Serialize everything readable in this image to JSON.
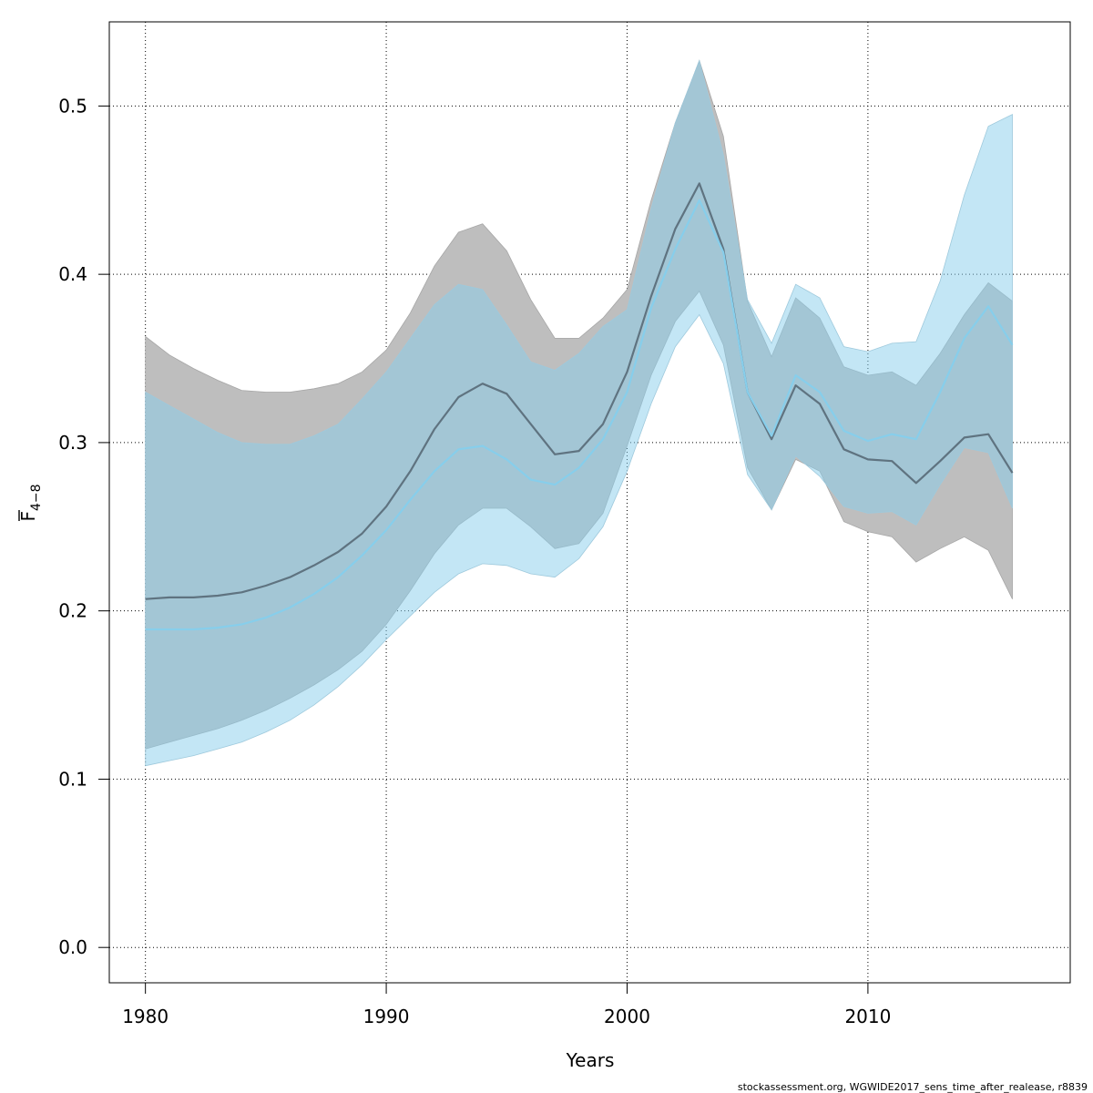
{
  "chart_data": {
    "type": "area",
    "xlabel": "Years",
    "ylabel": {
      "base": "F",
      "subscript": "4−8"
    },
    "credit": "stockassessment.org, WGWIDE2017_sens_time_after_realease, r8839",
    "xlim": [
      1978.5,
      2018.4
    ],
    "ylim": [
      -0.021,
      0.55
    ],
    "x_ticks": [
      1980,
      1990,
      2000,
      2010
    ],
    "y_ticks": [
      0.0,
      0.1,
      0.2,
      0.3,
      0.4,
      0.5
    ],
    "y_tick_labels": [
      "0.0",
      "0.1",
      "0.2",
      "0.3",
      "0.4",
      "0.5"
    ],
    "grid": true,
    "colors": {
      "gray_band": "#bebebe",
      "blue_band": "#87ceeb",
      "gray_line": "#5f7380",
      "blue_line": "#87ceeb"
    },
    "x": [
      1980,
      1981,
      1982,
      1983,
      1984,
      1985,
      1986,
      1987,
      1988,
      1989,
      1990,
      1991,
      1992,
      1993,
      1994,
      1995,
      1996,
      1997,
      1998,
      1999,
      2000,
      2001,
      2002,
      2003,
      2004,
      2005,
      2006,
      2007,
      2008,
      2009,
      2010,
      2011,
      2012,
      2013,
      2014,
      2015,
      2016
    ],
    "series": [
      {
        "color": "#5f7380",
        "band_color": "#bebebe",
        "values": [
          0.207,
          0.208,
          0.208,
          0.209,
          0.211,
          0.215,
          0.22,
          0.227,
          0.235,
          0.246,
          0.262,
          0.283,
          0.308,
          0.327,
          0.335,
          0.329,
          0.311,
          0.293,
          0.295,
          0.311,
          0.342,
          0.387,
          0.427,
          0.454,
          0.415,
          0.33,
          0.302,
          0.334,
          0.323,
          0.296,
          0.29,
          0.289,
          0.276,
          0.289,
          0.303,
          0.305,
          0.282
        ],
        "lower": [
          0.118,
          0.122,
          0.126,
          0.13,
          0.135,
          0.141,
          0.148,
          0.156,
          0.165,
          0.176,
          0.192,
          0.212,
          0.234,
          0.251,
          0.261,
          0.261,
          0.25,
          0.237,
          0.24,
          0.258,
          0.298,
          0.34,
          0.372,
          0.39,
          0.358,
          0.285,
          0.26,
          0.29,
          0.283,
          0.253,
          0.247,
          0.244,
          0.229,
          0.237,
          0.244,
          0.236,
          0.207
        ],
        "upper": [
          0.363,
          0.352,
          0.344,
          0.337,
          0.331,
          0.33,
          0.33,
          0.332,
          0.335,
          0.342,
          0.355,
          0.377,
          0.405,
          0.425,
          0.43,
          0.414,
          0.385,
          0.362,
          0.362,
          0.374,
          0.391,
          0.444,
          0.49,
          0.527,
          0.482,
          0.384,
          0.351,
          0.386,
          0.374,
          0.345,
          0.34,
          0.342,
          0.334,
          0.353,
          0.376,
          0.395,
          0.384
        ]
      },
      {
        "color": "#87ceeb",
        "band_color": "#87ceeb",
        "values": [
          0.189,
          0.189,
          0.189,
          0.19,
          0.192,
          0.196,
          0.202,
          0.21,
          0.22,
          0.233,
          0.248,
          0.266,
          0.283,
          0.296,
          0.298,
          0.29,
          0.278,
          0.275,
          0.285,
          0.302,
          0.33,
          0.38,
          0.415,
          0.444,
          0.413,
          0.33,
          0.304,
          0.34,
          0.33,
          0.307,
          0.301,
          0.305,
          0.302,
          0.33,
          0.362,
          0.381,
          0.358
        ],
        "lower": [
          0.108,
          0.111,
          0.114,
          0.118,
          0.122,
          0.128,
          0.135,
          0.144,
          0.155,
          0.168,
          0.183,
          0.197,
          0.211,
          0.222,
          0.228,
          0.227,
          0.222,
          0.22,
          0.231,
          0.25,
          0.283,
          0.323,
          0.357,
          0.376,
          0.347,
          0.281,
          0.26,
          0.292,
          0.28,
          0.262,
          0.258,
          0.259,
          0.251,
          0.275,
          0.297,
          0.294,
          0.261
        ],
        "upper": [
          0.33,
          0.322,
          0.314,
          0.306,
          0.3,
          0.299,
          0.299,
          0.304,
          0.311,
          0.326,
          0.342,
          0.362,
          0.382,
          0.394,
          0.391,
          0.37,
          0.348,
          0.343,
          0.353,
          0.369,
          0.379,
          0.439,
          0.49,
          0.527,
          0.471,
          0.385,
          0.359,
          0.394,
          0.386,
          0.357,
          0.354,
          0.359,
          0.36,
          0.396,
          0.447,
          0.488,
          0.495
        ]
      }
    ]
  }
}
